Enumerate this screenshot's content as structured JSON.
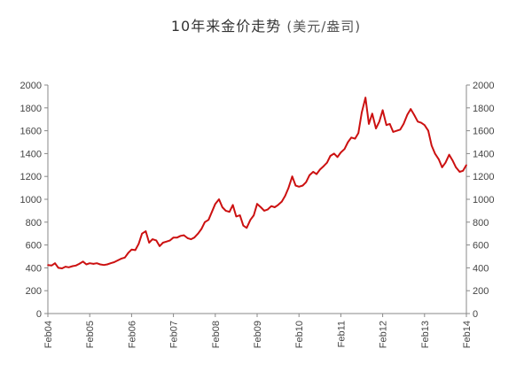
{
  "title": "10年来金价走势",
  "title_unit": "(美元/盎司)",
  "chart_data": {
    "type": "line",
    "title": "10年来金价走势 (美元/盎司)",
    "xlabel": "",
    "ylabel": "",
    "ylim": [
      0,
      2000
    ],
    "yticks": [
      0,
      200,
      400,
      600,
      800,
      1000,
      1200,
      1400,
      1600,
      1800,
      2000
    ],
    "y_axis_sides": "left-and-right",
    "grid": false,
    "legend": "none",
    "line_color": "#cc1111",
    "xticks": [
      "Feb04",
      "Feb05",
      "Feb06",
      "Feb07",
      "Feb08",
      "Feb09",
      "Feb10",
      "Feb11",
      "Feb12",
      "Feb13",
      "Feb14"
    ],
    "x": [
      2004.08,
      2004.17,
      2004.25,
      2004.33,
      2004.42,
      2004.5,
      2004.58,
      2004.67,
      2004.75,
      2004.83,
      2004.92,
      2005.0,
      2005.08,
      2005.17,
      2005.25,
      2005.33,
      2005.42,
      2005.5,
      2005.58,
      2005.67,
      2005.75,
      2005.83,
      2005.92,
      2006.0,
      2006.08,
      2006.17,
      2006.25,
      2006.33,
      2006.42,
      2006.5,
      2006.58,
      2006.67,
      2006.75,
      2006.83,
      2006.92,
      2007.0,
      2007.08,
      2007.17,
      2007.25,
      2007.33,
      2007.42,
      2007.5,
      2007.58,
      2007.67,
      2007.75,
      2007.83,
      2007.92,
      2008.0,
      2008.08,
      2008.17,
      2008.25,
      2008.33,
      2008.42,
      2008.5,
      2008.58,
      2008.67,
      2008.75,
      2008.83,
      2008.92,
      2009.0,
      2009.08,
      2009.17,
      2009.25,
      2009.33,
      2009.42,
      2009.5,
      2009.58,
      2009.67,
      2009.75,
      2009.83,
      2009.92,
      2010.0,
      2010.08,
      2010.17,
      2010.25,
      2010.33,
      2010.42,
      2010.5,
      2010.58,
      2010.67,
      2010.75,
      2010.83,
      2010.92,
      2011.0,
      2011.08,
      2011.17,
      2011.25,
      2011.33,
      2011.42,
      2011.5,
      2011.58,
      2011.67,
      2011.75,
      2011.83,
      2011.92,
      2012.0,
      2012.08,
      2012.17,
      2012.25,
      2012.33,
      2012.42,
      2012.5,
      2012.58,
      2012.67,
      2012.75,
      2012.83,
      2012.92,
      2013.0,
      2013.08,
      2013.17,
      2013.25,
      2013.33,
      2013.42,
      2013.5,
      2013.58,
      2013.67,
      2013.75,
      2013.83,
      2013.92,
      2014.0,
      2014.08
    ],
    "series": [
      {
        "values": [
          425,
          420,
          440,
          400,
          395,
          410,
          405,
          415,
          420,
          435,
          455,
          430,
          440,
          435,
          440,
          430,
          425,
          430,
          440,
          450,
          465,
          480,
          490,
          530,
          560,
          555,
          610,
          700,
          720,
          620,
          650,
          640,
          590,
          620,
          630,
          640,
          665,
          665,
          680,
          685,
          660,
          650,
          665,
          700,
          740,
          800,
          820,
          890,
          960,
          1000,
          930,
          900,
          890,
          950,
          850,
          860,
          770,
          750,
          820,
          860,
          960,
          930,
          900,
          910,
          940,
          930,
          950,
          980,
          1030,
          1100,
          1200,
          1120,
          1110,
          1120,
          1150,
          1210,
          1240,
          1220,
          1260,
          1290,
          1320,
          1380,
          1400,
          1370,
          1410,
          1440,
          1500,
          1540,
          1530,
          1580,
          1760,
          1890,
          1660,
          1750,
          1620,
          1680,
          1780,
          1650,
          1660,
          1590,
          1600,
          1610,
          1660,
          1740,
          1790,
          1740,
          1680,
          1670,
          1650,
          1600,
          1470,
          1400,
          1350,
          1280,
          1320,
          1390,
          1340,
          1280,
          1240,
          1250,
          1300
        ]
      }
    ]
  }
}
